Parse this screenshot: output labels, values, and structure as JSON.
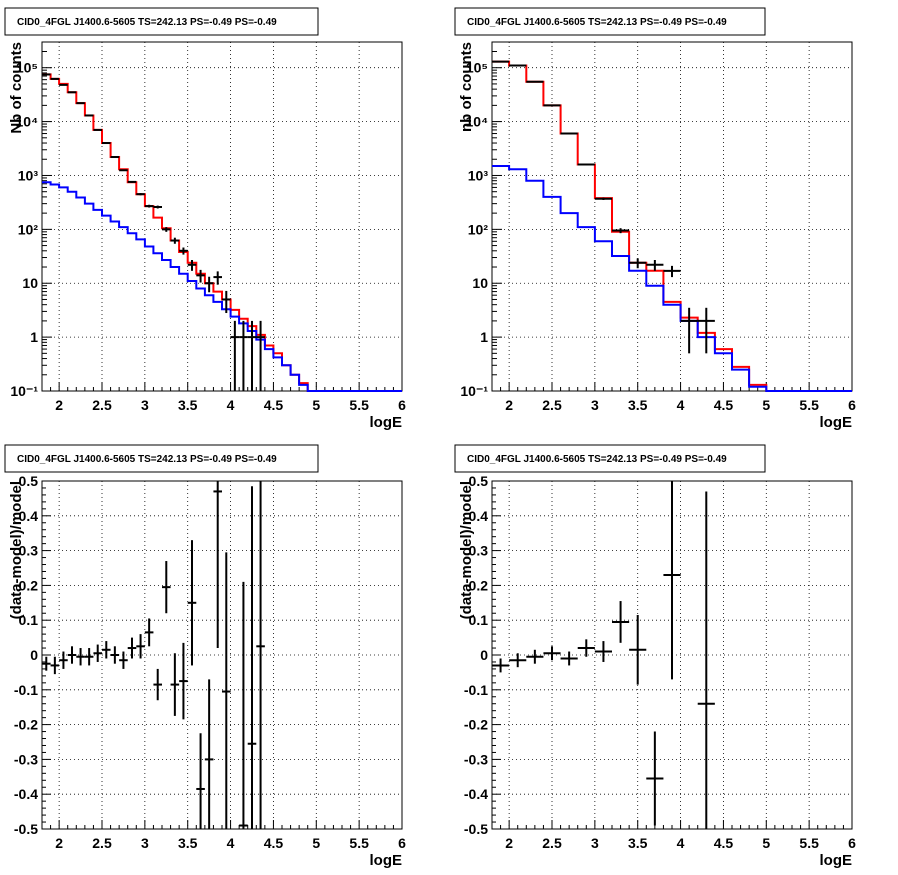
{
  "chart_data": [
    {
      "type": "histogram",
      "title": "CID0_4FGL J1400.6-5605 TS=242.13 PS=-0.49 PS=-0.49",
      "xlabel": "logE",
      "ylabel": "Nb of counts",
      "log_y": true,
      "grid": true,
      "xlim": [
        1.8,
        6
      ],
      "ylim": [
        0.1,
        300000
      ],
      "xticks": [
        2,
        2.5,
        3,
        3.5,
        4,
        4.5,
        5,
        5.5,
        6
      ],
      "xtick_labels": [
        "2",
        "2.5",
        "3",
        "3.5",
        "4",
        "4.5",
        "5",
        "5.5",
        "6"
      ],
      "yticks": [
        0.1,
        1,
        10,
        100,
        1000,
        10000,
        100000
      ],
      "ytick_labels": [
        "10^-1",
        "1",
        "10",
        "10^2",
        "10^3",
        "10^4",
        "10^5"
      ],
      "series": [
        {
          "kind": "step",
          "color": "#ff0000",
          "edges": [
            1.8,
            1.9,
            2.0,
            2.1,
            2.2,
            2.3,
            2.4,
            2.5,
            2.6,
            2.7,
            2.8,
            2.9,
            3.0,
            3.1,
            3.2,
            3.3,
            3.4,
            3.5,
            3.6,
            3.7,
            3.8,
            3.9,
            4.0,
            4.1,
            4.2,
            4.3,
            4.4,
            4.5,
            4.6,
            4.7,
            4.8,
            4.9,
            5.0,
            5.1,
            5.2,
            5.3,
            5.4,
            5.5,
            5.6,
            5.7,
            5.8,
            5.9,
            6.0
          ],
          "values": [
            75000,
            62000,
            50000,
            35000,
            22000,
            13000,
            7000,
            4000,
            2200,
            1300,
            750,
            450,
            270,
            165,
            105,
            62,
            38,
            24,
            15,
            10,
            7,
            5,
            3.2,
            2.2,
            1.6,
            1.1,
            0.7,
            0.5,
            0.3,
            0.2,
            0.14,
            0.1,
            0.1,
            0.1,
            0.1,
            0.1,
            0.1,
            0.1,
            0.1,
            0.1,
            0.1,
            0.1
          ]
        },
        {
          "kind": "step",
          "color": "#0000ff",
          "edges": [
            1.8,
            1.9,
            2.0,
            2.1,
            2.2,
            2.3,
            2.4,
            2.5,
            2.6,
            2.7,
            2.8,
            2.9,
            3.0,
            3.1,
            3.2,
            3.3,
            3.4,
            3.5,
            3.6,
            3.7,
            3.8,
            3.9,
            4.0,
            4.1,
            4.2,
            4.3,
            4.4,
            4.5,
            4.6,
            4.7,
            4.8,
            4.9,
            5.0,
            5.1,
            5.2,
            5.3,
            5.4,
            5.5,
            5.6,
            5.7,
            5.8,
            5.9,
            6.0
          ],
          "values": [
            750,
            680,
            600,
            500,
            390,
            300,
            230,
            180,
            140,
            110,
            85,
            65,
            48,
            36,
            27,
            20,
            15,
            11,
            8,
            6,
            4.5,
            3.3,
            2.4,
            1.8,
            1.3,
            0.9,
            0.6,
            0.42,
            0.3,
            0.2,
            0.13,
            0.1,
            0.1,
            0.1,
            0.1,
            0.1,
            0.1,
            0.1,
            0.1,
            0.1,
            0.1,
            0.1
          ]
        },
        {
          "kind": "errorbar",
          "color": "#000000",
          "points": [
            {
              "x": 1.85,
              "y": 75000,
              "xerr": 0.05,
              "yerr": 280
            },
            {
              "x": 1.95,
              "y": 62000,
              "xerr": 0.05,
              "yerr": 250
            },
            {
              "x": 2.05,
              "y": 48000,
              "xerr": 0.05,
              "yerr": 220
            },
            {
              "x": 2.15,
              "y": 35000,
              "xerr": 0.05,
              "yerr": 190
            },
            {
              "x": 2.25,
              "y": 22000,
              "xerr": 0.05,
              "yerr": 150
            },
            {
              "x": 2.35,
              "y": 13000,
              "xerr": 0.05,
              "yerr": 115
            },
            {
              "x": 2.45,
              "y": 7000,
              "xerr": 0.05,
              "yerr": 85
            },
            {
              "x": 2.55,
              "y": 4000,
              "xerr": 0.05,
              "yerr": 65
            },
            {
              "x": 2.65,
              "y": 2200,
              "xerr": 0.05,
              "yerr": 48
            },
            {
              "x": 2.75,
              "y": 1250,
              "xerr": 0.05,
              "yerr": 36
            },
            {
              "x": 2.85,
              "y": 760,
              "xerr": 0.05,
              "yerr": 28
            },
            {
              "x": 2.95,
              "y": 450,
              "xerr": 0.05,
              "yerr": 21
            },
            {
              "x": 3.05,
              "y": 270,
              "xerr": 0.05,
              "yerr": 16
            },
            {
              "x": 3.15,
              "y": 260,
              "xerr": 0.05,
              "yerr": 16
            },
            {
              "x": 3.25,
              "y": 100,
              "xerr": 0.05,
              "yerr": 10
            },
            {
              "x": 3.35,
              "y": 62,
              "xerr": 0.05,
              "yerr": 8
            },
            {
              "x": 3.45,
              "y": 40,
              "xerr": 0.05,
              "yerr": 6
            },
            {
              "x": 3.55,
              "y": 22,
              "xerr": 0.05,
              "yerr": 5
            },
            {
              "x": 3.65,
              "y": 14,
              "xerr": 0.05,
              "yerr": 3.7
            },
            {
              "x": 3.75,
              "y": 10,
              "xerr": 0.05,
              "yerr": 3.2
            },
            {
              "x": 3.85,
              "y": 13,
              "xerr": 0.05,
              "yerr": 3.6
            },
            {
              "x": 3.95,
              "y": 5,
              "xerr": 0.05,
              "yerr": 2.2
            },
            {
              "x": 4.05,
              "y": 1,
              "xerr": 0.05,
              "yerr": 1
            },
            {
              "x": 4.15,
              "y": 1,
              "xerr": 0.05,
              "yerr": 1
            },
            {
              "x": 4.25,
              "y": 1,
              "xerr": 0.05,
              "yerr": 1
            },
            {
              "x": 4.35,
              "y": 1,
              "xerr": 0.05,
              "yerr": 1
            }
          ]
        }
      ]
    },
    {
      "type": "histogram",
      "title": "CID0_4FGL J1400.6-5605 TS=242.13 PS=-0.49 PS=-0.49",
      "xlabel": "logE",
      "ylabel": "nb of counts",
      "log_y": true,
      "grid": true,
      "xlim": [
        1.8,
        6
      ],
      "ylim": [
        0.1,
        300000
      ],
      "xticks": [
        2,
        2.5,
        3,
        3.5,
        4,
        4.5,
        5,
        5.5,
        6
      ],
      "xtick_labels": [
        "2",
        "2.5",
        "3",
        "3.5",
        "4",
        "4.5",
        "5",
        "5.5",
        "6"
      ],
      "yticks": [
        0.1,
        1,
        10,
        100,
        1000,
        10000,
        100000
      ],
      "ytick_labels": [
        "10^-1",
        "1",
        "10",
        "10^2",
        "10^3",
        "10^4",
        "10^5"
      ],
      "series": [
        {
          "kind": "step",
          "color": "#ff0000",
          "edges": [
            1.8,
            2.0,
            2.2,
            2.4,
            2.6,
            2.8,
            3.0,
            3.2,
            3.4,
            3.6,
            3.8,
            4.0,
            4.2,
            4.4,
            4.6,
            4.8,
            5.0,
            5.2,
            5.4,
            5.6,
            5.8,
            6.0
          ],
          "values": [
            130000,
            110000,
            55000,
            20000,
            6000,
            1600,
            380,
            90,
            24,
            17,
            4.5,
            2.3,
            1.2,
            0.6,
            0.28,
            0.13,
            0.1,
            0.1,
            0.1,
            0.1,
            0.1
          ]
        },
        {
          "kind": "step",
          "color": "#0000ff",
          "edges": [
            1.8,
            2.0,
            2.2,
            2.4,
            2.6,
            2.8,
            3.0,
            3.2,
            3.4,
            3.6,
            3.8,
            4.0,
            4.2,
            4.4,
            4.6,
            4.8,
            5.0,
            5.2,
            5.4,
            5.6,
            5.8,
            6.0
          ],
          "values": [
            1500,
            1300,
            800,
            400,
            200,
            110,
            60,
            32,
            17,
            9,
            4,
            2,
            1,
            0.5,
            0.25,
            0.12,
            0.1,
            0.1,
            0.1,
            0.1,
            0.1
          ]
        },
        {
          "kind": "errorbar",
          "color": "#000000",
          "points": [
            {
              "x": 1.9,
              "y": 130000,
              "xerr": 0.1,
              "yerr": 360
            },
            {
              "x": 2.1,
              "y": 110000,
              "xerr": 0.1,
              "yerr": 330
            },
            {
              "x": 2.3,
              "y": 55000,
              "xerr": 0.1,
              "yerr": 235
            },
            {
              "x": 2.5,
              "y": 20000,
              "xerr": 0.1,
              "yerr": 140
            },
            {
              "x": 2.7,
              "y": 6000,
              "xerr": 0.1,
              "yerr": 77
            },
            {
              "x": 2.9,
              "y": 1600,
              "xerr": 0.1,
              "yerr": 40
            },
            {
              "x": 3.1,
              "y": 370,
              "xerr": 0.1,
              "yerr": 19
            },
            {
              "x": 3.3,
              "y": 95,
              "xerr": 0.1,
              "yerr": 10
            },
            {
              "x": 3.5,
              "y": 24,
              "xerr": 0.1,
              "yerr": 5
            },
            {
              "x": 3.7,
              "y": 22,
              "xerr": 0.1,
              "yerr": 5
            },
            {
              "x": 3.9,
              "y": 17,
              "xerr": 0.1,
              "yerr": 4
            },
            {
              "x": 4.1,
              "y": 2,
              "xerr": 0.1,
              "yerr": 1.5
            },
            {
              "x": 4.3,
              "y": 2,
              "xerr": 0.1,
              "yerr": 1.5
            }
          ]
        }
      ]
    },
    {
      "type": "errorbar",
      "title": "CID0_4FGL J1400.6-5605 TS=242.13 PS=-0.49 PS=-0.49",
      "xlabel": "logE",
      "ylabel": "(data-model)/model",
      "log_y": false,
      "grid": true,
      "xlim": [
        1.8,
        6
      ],
      "ylim": [
        -0.5,
        0.5
      ],
      "xticks": [
        2,
        2.5,
        3,
        3.5,
        4,
        4.5,
        5,
        5.5,
        6
      ],
      "xtick_labels": [
        "2",
        "2.5",
        "3",
        "3.5",
        "4",
        "4.5",
        "5",
        "5.5",
        "6"
      ],
      "yticks": [
        -0.5,
        -0.4,
        -0.3,
        -0.2,
        -0.1,
        0,
        0.1,
        0.2,
        0.3,
        0.4,
        0.5
      ],
      "ytick_labels": [
        "-0.5",
        "-0.4",
        "-0.3",
        "-0.2",
        "-0.1",
        "0",
        "0.1",
        "0.2",
        "0.3",
        "0.4",
        "0.5"
      ],
      "series": [
        {
          "kind": "errorbar",
          "color": "#000000",
          "points": [
            {
              "x": 1.85,
              "y": -0.025,
              "xerr": 0.05,
              "yerr": 0.02
            },
            {
              "x": 1.95,
              "y": -0.03,
              "xerr": 0.05,
              "yerr": 0.025
            },
            {
              "x": 2.05,
              "y": -0.015,
              "xerr": 0.05,
              "yerr": 0.025
            },
            {
              "x": 2.15,
              "y": 0.0,
              "xerr": 0.05,
              "yerr": 0.025
            },
            {
              "x": 2.25,
              "y": -0.005,
              "xerr": 0.05,
              "yerr": 0.025
            },
            {
              "x": 2.35,
              "y": -0.005,
              "xerr": 0.05,
              "yerr": 0.025
            },
            {
              "x": 2.45,
              "y": 0.005,
              "xerr": 0.05,
              "yerr": 0.025
            },
            {
              "x": 2.55,
              "y": 0.015,
              "xerr": 0.05,
              "yerr": 0.025
            },
            {
              "x": 2.65,
              "y": 0.0,
              "xerr": 0.05,
              "yerr": 0.025
            },
            {
              "x": 2.75,
              "y": -0.015,
              "xerr": 0.05,
              "yerr": 0.025
            },
            {
              "x": 2.85,
              "y": 0.02,
              "xerr": 0.05,
              "yerr": 0.03
            },
            {
              "x": 2.95,
              "y": 0.025,
              "xerr": 0.05,
              "yerr": 0.035
            },
            {
              "x": 3.05,
              "y": 0.065,
              "xerr": 0.05,
              "yerr": 0.04
            },
            {
              "x": 3.15,
              "y": -0.085,
              "xerr": 0.05,
              "yerr": 0.045
            },
            {
              "x": 3.25,
              "y": 0.195,
              "xerr": 0.05,
              "yerr": 0.075
            },
            {
              "x": 3.35,
              "y": -0.085,
              "xerr": 0.05,
              "yerr": 0.09
            },
            {
              "x": 3.45,
              "y": -0.075,
              "xerr": 0.05,
              "yerr": 0.11
            },
            {
              "x": 3.55,
              "y": 0.15,
              "xerr": 0.05,
              "yerr": 0.18
            },
            {
              "x": 3.65,
              "y": -0.385,
              "xerr": 0.05,
              "yerr": 0.16
            },
            {
              "x": 3.75,
              "y": -0.3,
              "xerr": 0.05,
              "yerr": 0.23
            },
            {
              "x": 3.85,
              "y": 0.47,
              "xerr": 0.05,
              "yerr": 0.45
            },
            {
              "x": 3.95,
              "y": -0.105,
              "xerr": 0.05,
              "yerr": 0.4
            },
            {
              "x": 4.15,
              "y": -0.49,
              "xerr": 0.05,
              "yerr": 0.7
            },
            {
              "x": 4.25,
              "y": -0.255,
              "xerr": 0.05,
              "yerr": 0.74
            },
            {
              "x": 4.35,
              "y": 0.025,
              "xerr": 0.05,
              "yerr": 0.95
            }
          ]
        }
      ]
    },
    {
      "type": "errorbar",
      "title": "CID0_4FGL J1400.6-5605 TS=242.13 PS=-0.49 PS=-0.49",
      "xlabel": "logE",
      "ylabel": "(data-model)/model",
      "log_y": false,
      "grid": true,
      "xlim": [
        1.8,
        6
      ],
      "ylim": [
        -0.5,
        0.5
      ],
      "xticks": [
        2,
        2.5,
        3,
        3.5,
        4,
        4.5,
        5,
        5.5,
        6
      ],
      "xtick_labels": [
        "2",
        "2.5",
        "3",
        "3.5",
        "4",
        "4.5",
        "5",
        "5.5",
        "6"
      ],
      "yticks": [
        -0.5,
        -0.4,
        -0.3,
        -0.2,
        -0.1,
        0,
        0.1,
        0.2,
        0.3,
        0.4,
        0.5
      ],
      "ytick_labels": [
        "-0.5",
        "-0.4",
        "-0.3",
        "-0.2",
        "-0.1",
        "0",
        "0.1",
        "0.2",
        "0.3",
        "0.4",
        "0.5"
      ],
      "series": [
        {
          "kind": "errorbar",
          "color": "#000000",
          "points": [
            {
              "x": 1.9,
              "y": -0.03,
              "xerr": 0.1,
              "yerr": 0.02
            },
            {
              "x": 2.1,
              "y": -0.015,
              "xerr": 0.1,
              "yerr": 0.02
            },
            {
              "x": 2.3,
              "y": -0.005,
              "xerr": 0.1,
              "yerr": 0.02
            },
            {
              "x": 2.5,
              "y": 0.005,
              "xerr": 0.1,
              "yerr": 0.02
            },
            {
              "x": 2.7,
              "y": -0.01,
              "xerr": 0.1,
              "yerr": 0.02
            },
            {
              "x": 2.9,
              "y": 0.02,
              "xerr": 0.1,
              "yerr": 0.025
            },
            {
              "x": 3.1,
              "y": 0.01,
              "xerr": 0.1,
              "yerr": 0.03
            },
            {
              "x": 3.3,
              "y": 0.095,
              "xerr": 0.1,
              "yerr": 0.06
            },
            {
              "x": 3.5,
              "y": 0.015,
              "xerr": 0.1,
              "yerr": 0.1
            },
            {
              "x": 3.7,
              "y": -0.355,
              "xerr": 0.1,
              "yerr": 0.135
            },
            {
              "x": 3.9,
              "y": 0.23,
              "xerr": 0.1,
              "yerr": 0.3
            },
            {
              "x": 4.3,
              "y": -0.14,
              "xerr": 0.1,
              "yerr": 0.61
            }
          ]
        }
      ]
    }
  ]
}
